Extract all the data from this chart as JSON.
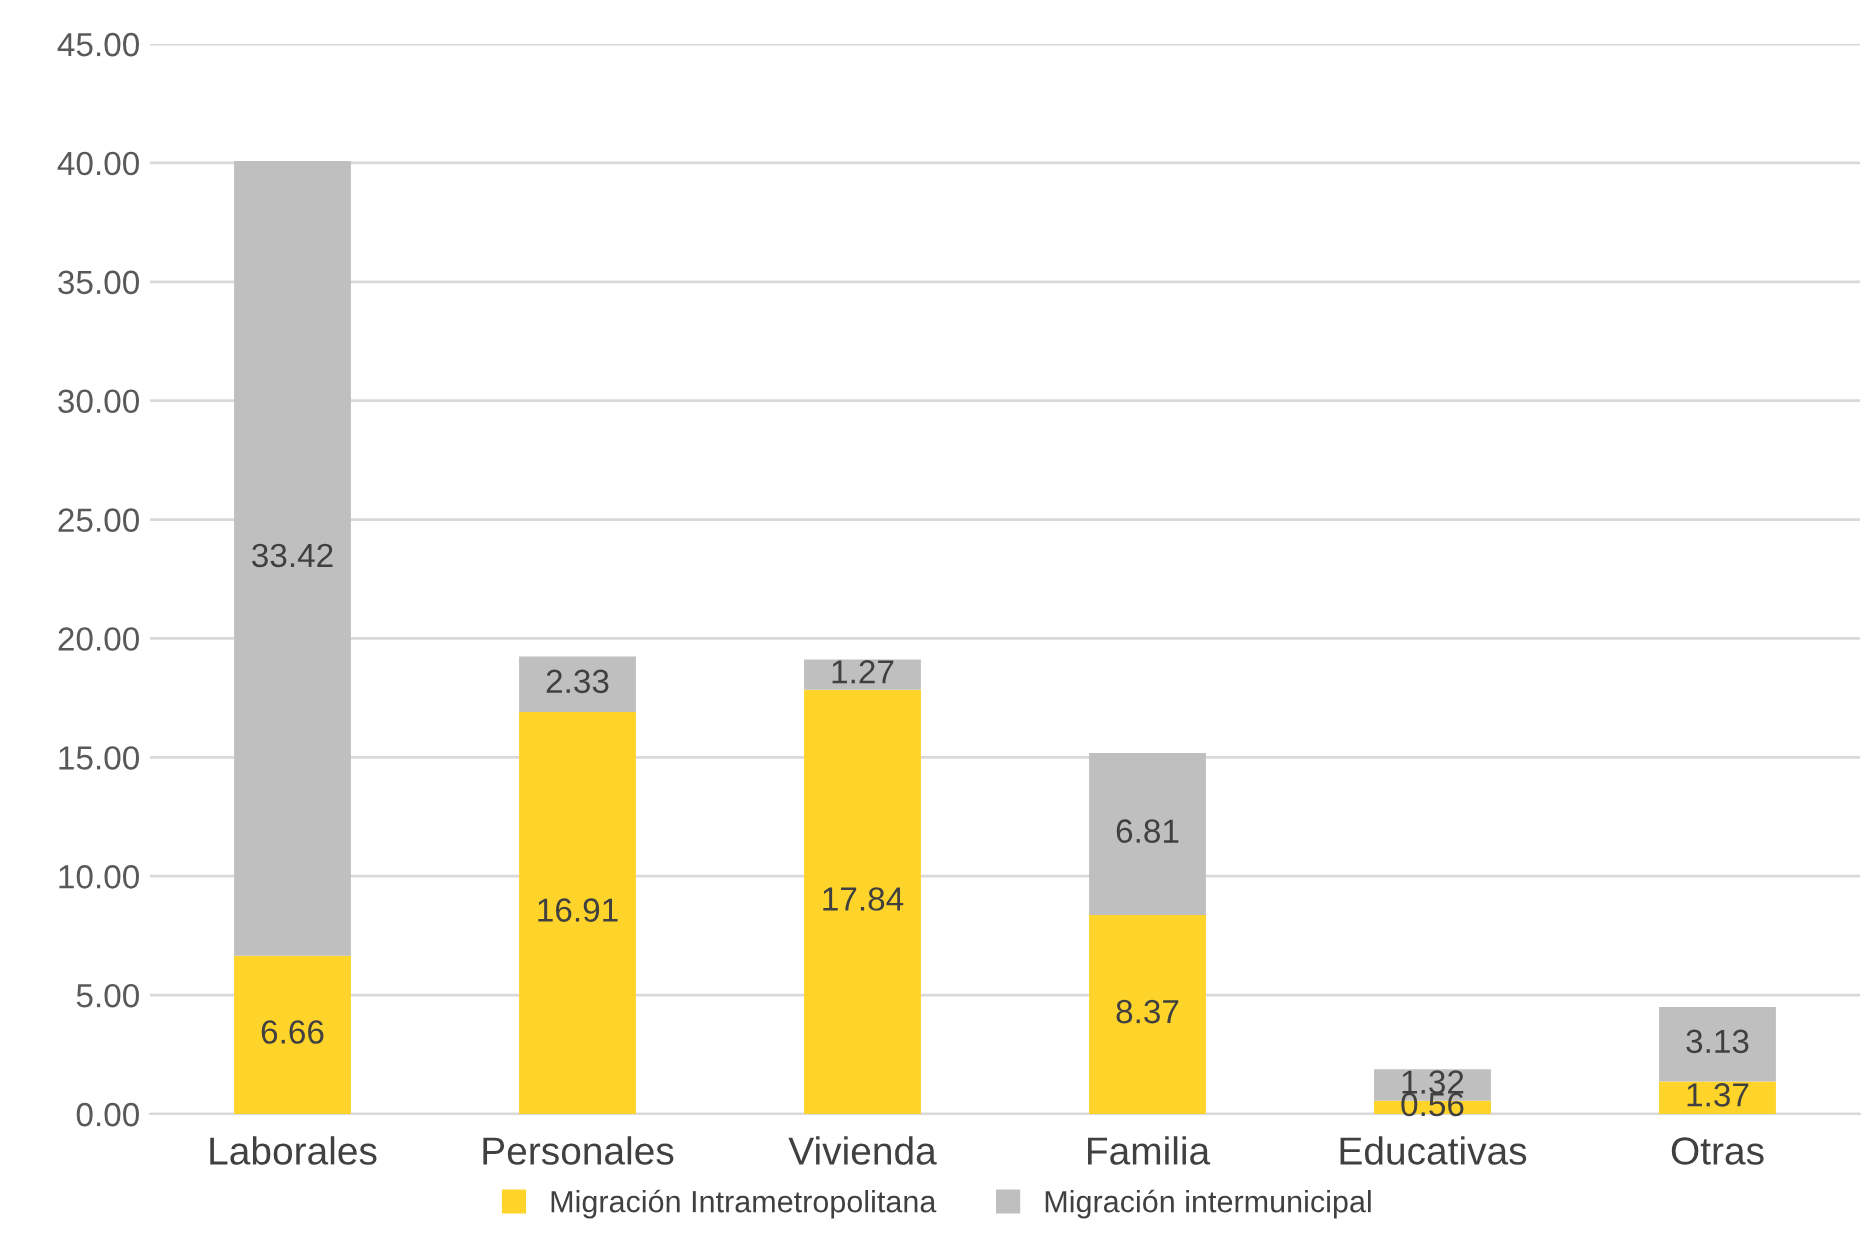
{
  "chart_data": {
    "type": "bar",
    "stacked": true,
    "categories": [
      "Laborales",
      "Personales",
      "Vivienda",
      "Familia",
      "Educativas",
      "Otras"
    ],
    "series": [
      {
        "name": "Migración Intrametropolitana",
        "color": "#ffd42a",
        "values": [
          6.66,
          16.91,
          17.84,
          8.37,
          0.56,
          1.37
        ]
      },
      {
        "name": "Migración intermunicipal",
        "color": "#bfbfbf",
        "values": [
          33.42,
          2.33,
          1.27,
          6.81,
          1.32,
          3.13
        ]
      }
    ],
    "ylim": [
      0,
      45
    ],
    "yticks": [
      {
        "value": 0,
        "label": "0.00"
      },
      {
        "value": 5,
        "label": "5.00"
      },
      {
        "value": 10,
        "label": "10.00"
      },
      {
        "value": 15,
        "label": "15.00"
      },
      {
        "value": 20,
        "label": "20.00"
      },
      {
        "value": 25,
        "label": "25.00"
      },
      {
        "value": 30,
        "label": "30.00"
      },
      {
        "value": 35,
        "label": "35.00"
      },
      {
        "value": 40,
        "label": "40.00"
      },
      {
        "value": 45,
        "label": "45.00"
      }
    ],
    "grid": "y",
    "legend": "bottom",
    "data_labels": true
  }
}
